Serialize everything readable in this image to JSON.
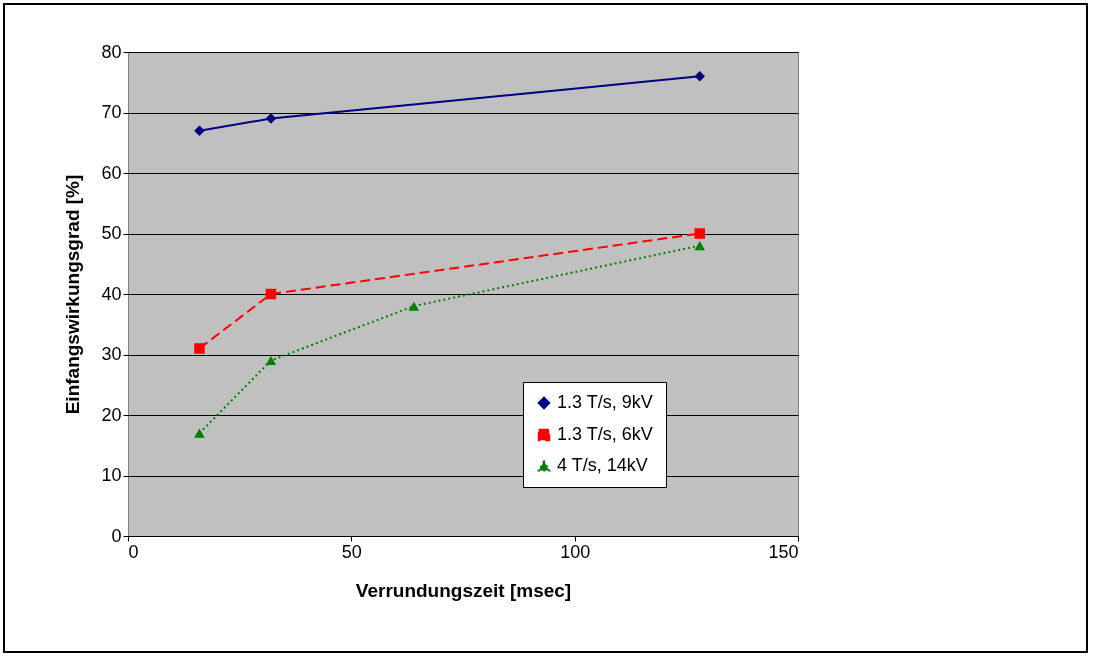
{
  "chart_data": {
    "type": "line",
    "xlabel": "Verrundungszeit [msec]",
    "ylabel": "Einfangswirkungsgrad [%]",
    "xlim": [
      0,
      150
    ],
    "xticks": [
      0,
      50,
      100,
      150
    ],
    "ylim": [
      0,
      80
    ],
    "yticks": [
      0,
      10,
      20,
      30,
      40,
      50,
      60,
      70,
      80
    ],
    "grid": "y",
    "legend": "bottom right",
    "series": [
      {
        "name": "1.3 T/s, 9kV",
        "color": "#000080",
        "marker": "diamond",
        "line_style": "solid",
        "x": [
          16,
          32,
          128
        ],
        "values": [
          67,
          69,
          76
        ]
      },
      {
        "name": "1.3 T/s, 6kV",
        "color": "#ff0000",
        "marker": "square",
        "line_style": "dashed",
        "x": [
          16,
          32,
          128
        ],
        "values": [
          31,
          40,
          50
        ]
      },
      {
        "name": "4 T/s, 14kV",
        "color": "#008000",
        "marker": "triangle",
        "line_style": "dotted",
        "x": [
          16,
          32,
          64,
          128
        ],
        "values": [
          17,
          29,
          38,
          48
        ]
      }
    ]
  }
}
